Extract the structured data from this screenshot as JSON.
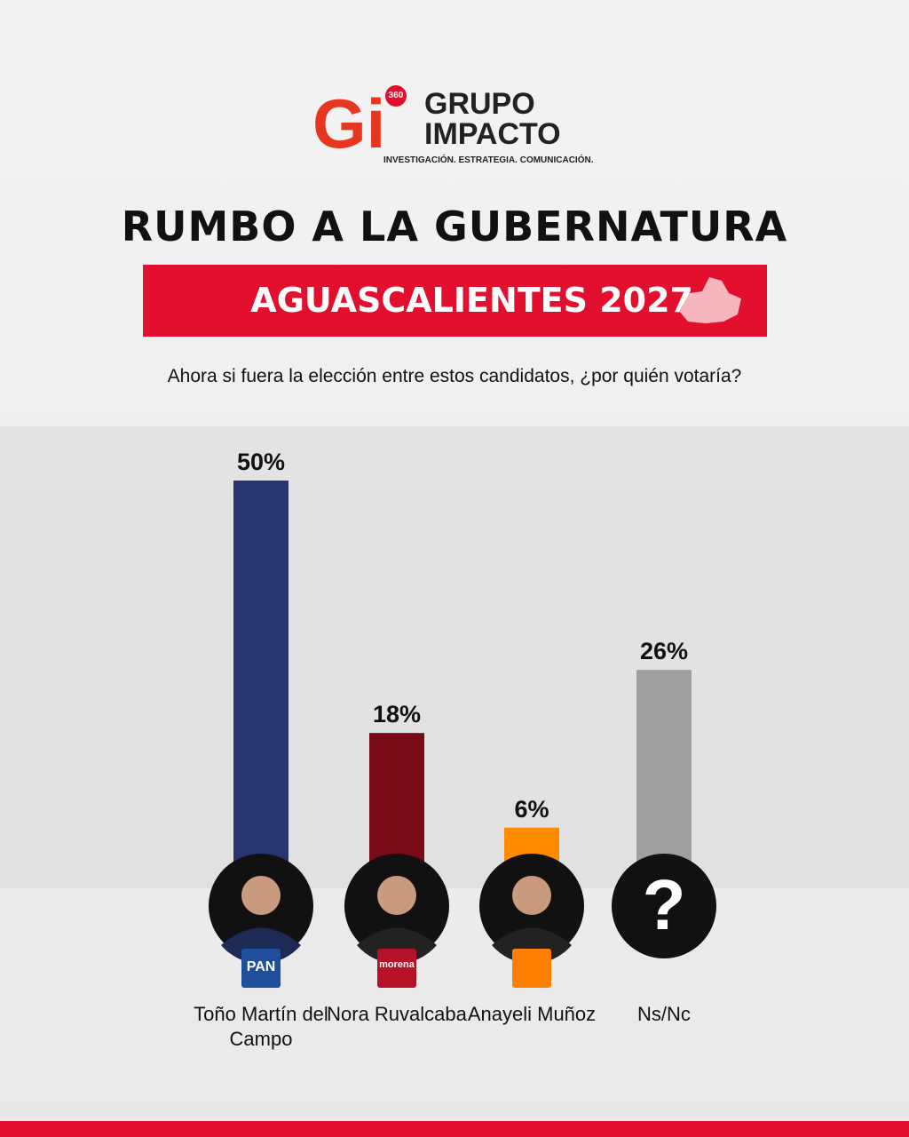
{
  "logo": {
    "mark": "Gi",
    "badge": "360",
    "name_line1": "GRUPO",
    "name_line2": "IMPACTO",
    "tagline": "INVESTIGACIÓN. ESTRATEGIA. COMUNICACIÓN."
  },
  "chart_data": {
    "type": "bar",
    "title": "RUMBO A LA GUBERNATURA",
    "subtitle": "AGUASCALIENTES 2027",
    "question": "Ahora si fuera la elección entre estos candidatos, ¿por quién votaría?",
    "categories": [
      "Toño Martín del Campo",
      "Nora Ruvalcaba",
      "Anayeli Muñoz",
      "Ns/Nc"
    ],
    "values": [
      50,
      18,
      6,
      26
    ],
    "value_labels": [
      "50%",
      "18%",
      "6%",
      "26%"
    ],
    "colors": [
      "#27366e",
      "#7b0a17",
      "#ff8a00",
      "#a0a0a0"
    ],
    "party_labels": [
      "PAN",
      "morena",
      null,
      null
    ],
    "unknown_mark": "?"
  }
}
